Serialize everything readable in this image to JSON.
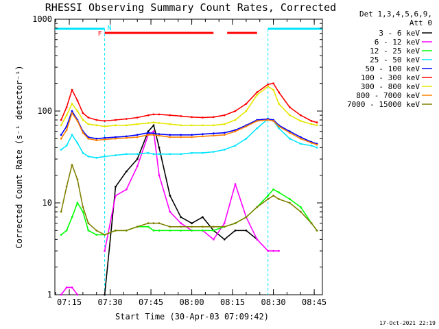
{
  "chart_data": {
    "type": "line",
    "title": "RHESSI Observing Summary Count Rates, Corrected",
    "ylabel": "Corrected Count Rate (s⁻¹ detector⁻¹)",
    "xlabel": "Start Time (30-Apr-03 07:09:42)",
    "yscale": "log",
    "ylim": [
      1,
      1000
    ],
    "xlim": [
      "07:09:42",
      "08:48:00"
    ],
    "y_ticks": [
      "1",
      "10",
      "100",
      "1000"
    ],
    "x_ticks": [
      "07:15",
      "07:30",
      "07:45",
      "08:00",
      "08:15",
      "08:30",
      "08:45"
    ],
    "grid": false,
    "legend_placement": "top-right",
    "legend_header": [
      "Det 1,3,4,5,6,9,",
      "Att 0"
    ],
    "footer_date": "17-Oct-2021 22:19",
    "annotations": {
      "night_markers": [
        "N"
      ],
      "flag_markers": [
        "F"
      ],
      "night_intervals": [
        [
          "07:09:42",
          "07:28:00"
        ],
        [
          "08:28:00",
          "08:48:00"
        ]
      ],
      "flag_intervals": [
        [
          "07:28:00",
          "08:08:00"
        ],
        [
          "08:13:00",
          "08:24:00"
        ]
      ]
    },
    "x": [
      "07:12",
      "07:14",
      "07:16",
      "07:18",
      "07:20",
      "07:22",
      "07:25",
      "07:28",
      "07:32",
      "07:36",
      "07:40",
      "07:44",
      "07:46",
      "07:48",
      "07:52",
      "07:56",
      "08:00",
      "08:04",
      "08:08",
      "08:12",
      "08:16",
      "08:20",
      "08:24",
      "08:28",
      "08:30",
      "08:32",
      "08:36",
      "08:40",
      "08:44",
      "08:46"
    ],
    "series": [
      {
        "name": "3 - 6 keV",
        "color": "#000000",
        "values": [
          null,
          null,
          null,
          null,
          null,
          null,
          null,
          1,
          15,
          22,
          30,
          60,
          70,
          40,
          12,
          7,
          6,
          7,
          5,
          4,
          5,
          5,
          4,
          null,
          null,
          null,
          null,
          null,
          null,
          null
        ]
      },
      {
        "name": "6 - 12 keV",
        "color": "#ff00ff",
        "values": [
          1,
          1.2,
          1.2,
          1,
          null,
          null,
          null,
          3,
          12,
          14,
          25,
          55,
          60,
          20,
          8,
          6,
          5,
          5,
          4,
          6,
          16,
          7,
          4,
          3,
          3,
          3,
          null,
          null,
          null,
          null
        ]
      },
      {
        "name": "12 - 25 keV",
        "color": "#00ff00",
        "values": [
          4.5,
          5,
          7,
          10,
          8,
          5,
          4.5,
          4.5,
          5,
          5,
          5.5,
          5.5,
          5,
          5,
          5,
          5,
          5,
          5,
          5,
          5.5,
          6,
          7,
          9,
          12,
          14,
          13,
          11,
          9,
          6,
          5
        ]
      },
      {
        "name": "25 - 50 keV",
        "color": "#00e5ff",
        "values": [
          38,
          42,
          55,
          45,
          35,
          32,
          31,
          32,
          33,
          34,
          34,
          35,
          34,
          34,
          34,
          34,
          35,
          35,
          36,
          38,
          42,
          50,
          65,
          82,
          78,
          65,
          50,
          44,
          42,
          40
        ]
      },
      {
        "name": "50 - 100 keV",
        "color": "#0000ff",
        "values": [
          55,
          68,
          100,
          80,
          60,
          52,
          50,
          51,
          52,
          53,
          55,
          58,
          57,
          56,
          55,
          55,
          55,
          56,
          57,
          58,
          62,
          70,
          80,
          82,
          80,
          70,
          60,
          52,
          46,
          44
        ]
      },
      {
        "name": "100 - 300 keV",
        "color": "#ff0000",
        "values": [
          80,
          110,
          170,
          130,
          95,
          85,
          80,
          78,
          80,
          82,
          85,
          90,
          92,
          92,
          90,
          88,
          86,
          85,
          86,
          90,
          100,
          120,
          160,
          195,
          200,
          160,
          110,
          90,
          78,
          75
        ]
      },
      {
        "name": "300 - 800 keV",
        "color": "#e6e600",
        "values": [
          70,
          90,
          120,
          100,
          80,
          72,
          70,
          68,
          70,
          70,
          72,
          74,
          75,
          74,
          72,
          70,
          70,
          70,
          70,
          72,
          80,
          100,
          150,
          185,
          170,
          120,
          90,
          78,
          72,
          70
        ]
      },
      {
        "name": "800 - 7000 keV",
        "color": "#ff8000",
        "values": [
          50,
          62,
          95,
          78,
          58,
          50,
          48,
          49,
          50,
          51,
          52,
          55,
          55,
          54,
          52,
          52,
          52,
          53,
          54,
          55,
          60,
          68,
          78,
          80,
          78,
          68,
          58,
          50,
          45,
          43
        ]
      },
      {
        "name": "7000 - 15000 keV",
        "color": "#808000",
        "values": [
          8,
          15,
          26,
          18,
          9,
          6,
          5,
          4.5,
          5,
          5,
          5.5,
          6,
          6,
          6,
          5.5,
          5.5,
          5.5,
          5.5,
          5.5,
          5.5,
          6,
          7,
          9,
          11,
          12,
          11,
          10,
          8,
          6,
          5
        ]
      }
    ]
  }
}
